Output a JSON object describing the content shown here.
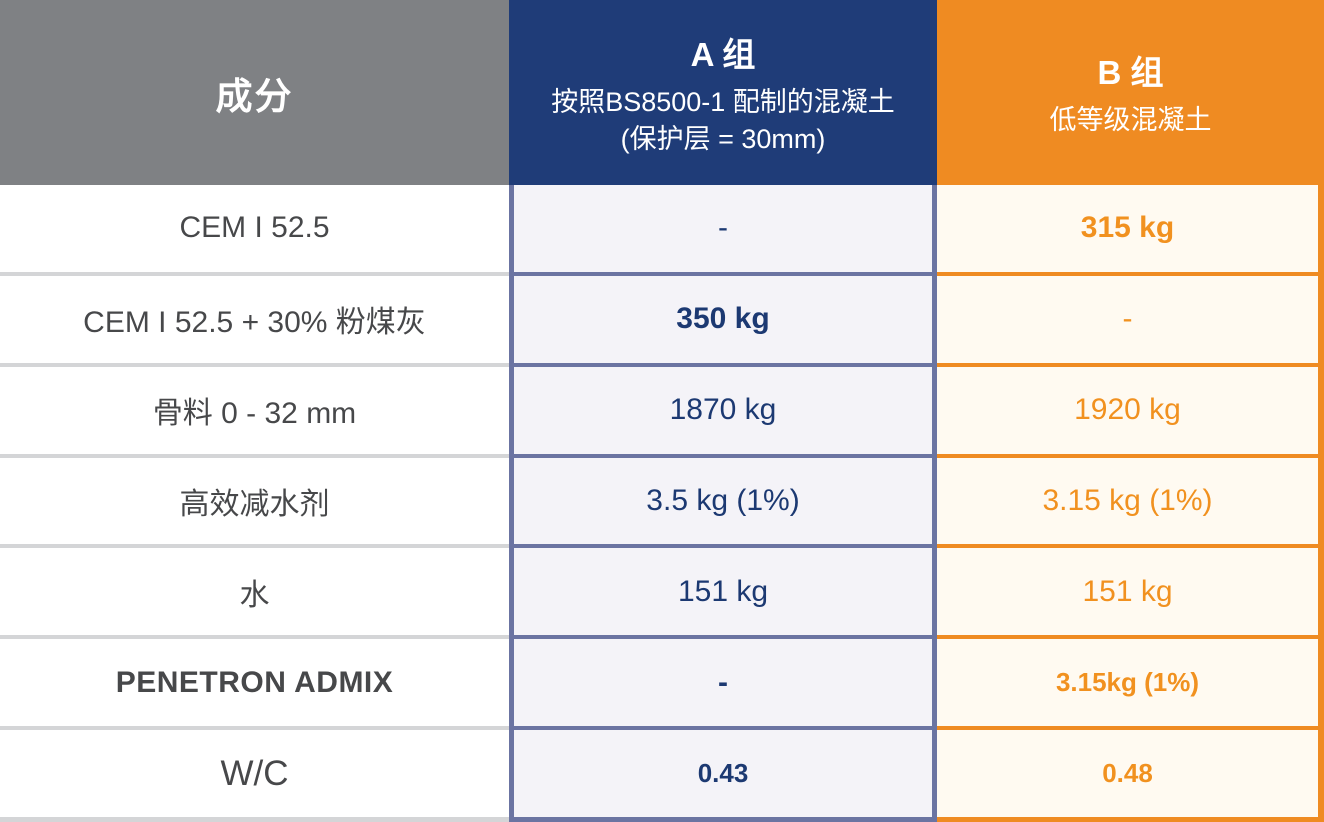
{
  "table": {
    "columns": {
      "ingredient": {
        "header": "成分"
      },
      "group_a": {
        "title": "A 组",
        "subtitle": "按照BS8500-1 配制的混凝土(保护层 = 30mm)"
      },
      "group_b": {
        "title": "B 组",
        "subtitle": "低等级混凝土"
      }
    },
    "rows": [
      {
        "ingredient": "CEM I 52.5",
        "a": "-",
        "b": "315 kg"
      },
      {
        "ingredient": "CEM I 52.5 + 30% 粉煤灰",
        "a": "350 kg",
        "b": "-"
      },
      {
        "ingredient": "骨料 0 - 32 mm",
        "a": "1870 kg",
        "b": "1920 kg"
      },
      {
        "ingredient": "高效减水剂",
        "a": "3.5 kg (1%)",
        "b": "3.15 kg (1%)"
      },
      {
        "ingredient": "水",
        "a": "151 kg",
        "b": "151 kg"
      },
      {
        "ingredient": "PENETRON ADMIX",
        "a": "-",
        "b": "3.15kg (1%)"
      },
      {
        "ingredient": "W/C",
        "a": "0.43",
        "b": "0.48"
      }
    ],
    "colors": {
      "header_gray": "#7f8184",
      "group_a_blue": "#1f3c78",
      "group_b_orange": "#ef8b22",
      "group_a_cell_bg": "#f4f3f8",
      "group_b_cell_bg": "#fffaf1",
      "group_a_border": "#6b74a2",
      "group_a_text": "#1c3972",
      "group_b_text": "#f1911f",
      "ingredient_text": "#47484a"
    }
  }
}
